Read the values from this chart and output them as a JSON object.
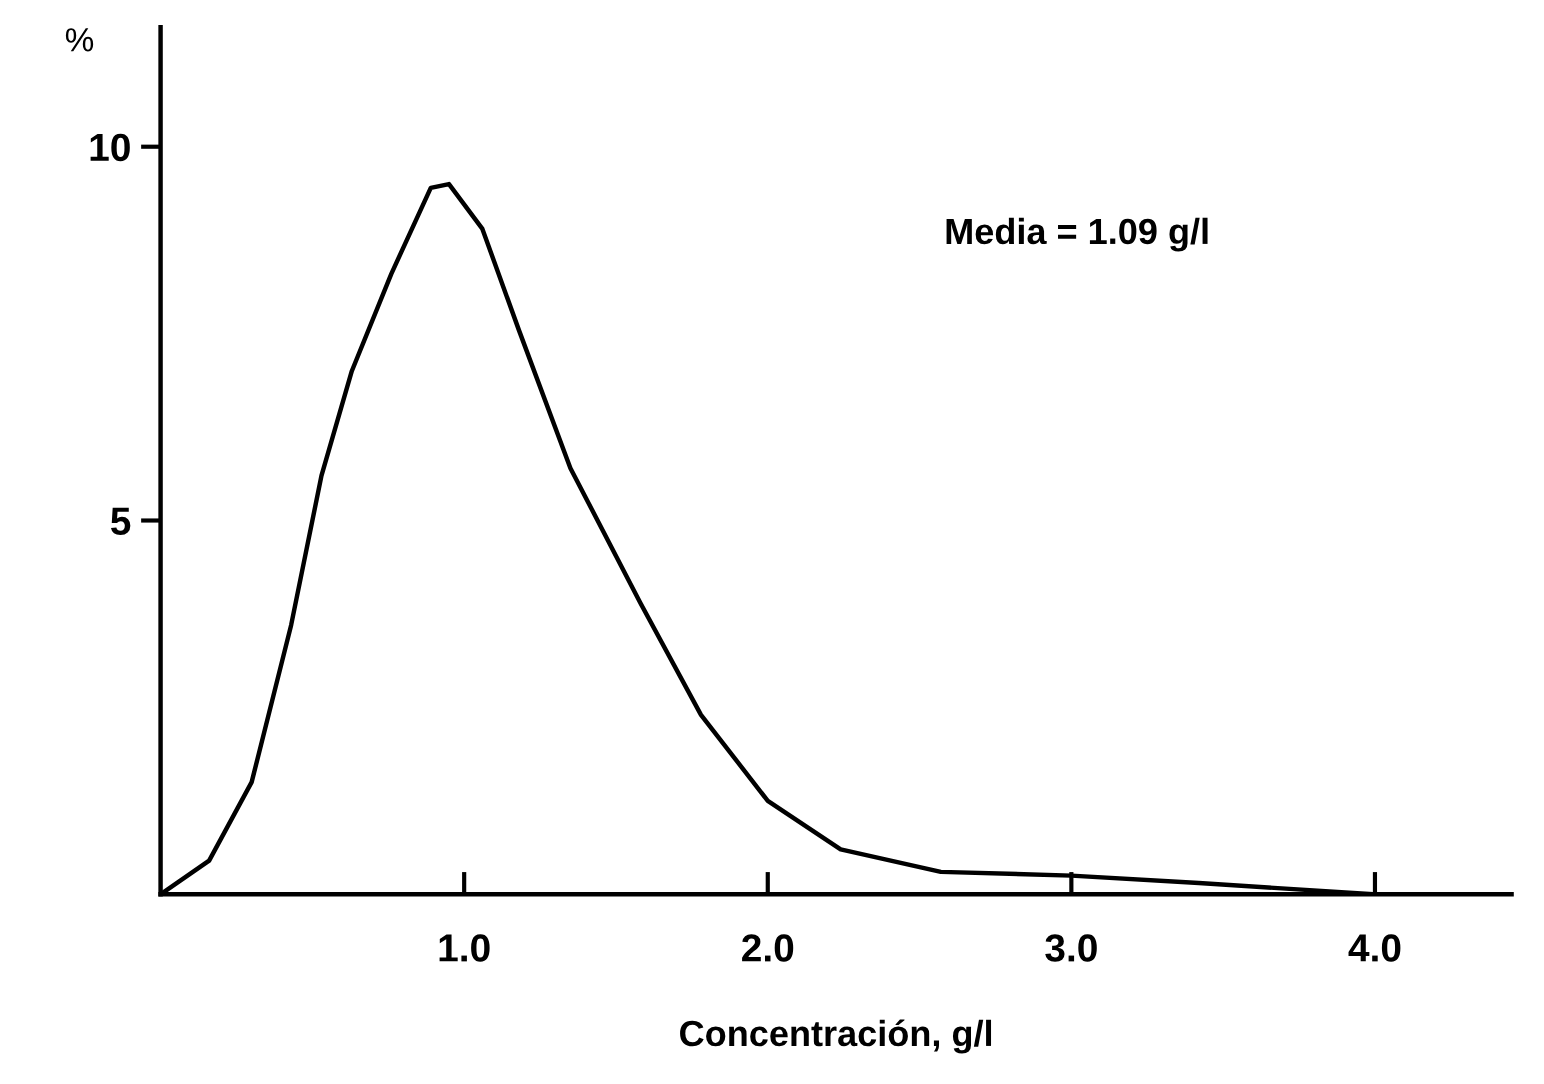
{
  "chart_data": {
    "type": "line",
    "xlabel": "Concentración, g/l",
    "ylabel": "%",
    "annotations": [
      "Media = 1.09 g/l"
    ],
    "x": [
      0,
      0.16,
      0.3,
      0.43,
      0.53,
      0.63,
      0.76,
      0.89,
      0.95,
      1.06,
      1.18,
      1.35,
      1.58,
      1.78,
      2.0,
      2.24,
      2.57,
      3.0,
      3.42,
      4.0
    ],
    "values": [
      0,
      0.45,
      1.5,
      3.6,
      5.6,
      7.0,
      8.3,
      9.45,
      9.5,
      8.9,
      7.55,
      5.7,
      3.9,
      2.4,
      1.25,
      0.6,
      0.3,
      0.25,
      0.15,
      0
    ],
    "color": "#000000",
    "xlim": [
      0,
      4.45
    ],
    "ylim": [
      0,
      11.6
    ],
    "xticks": [
      {
        "value": 1,
        "label": "1.0"
      },
      {
        "value": 2,
        "label": "2.0"
      },
      {
        "value": 3,
        "label": "3.0"
      },
      {
        "value": 4,
        "label": "4.0"
      }
    ],
    "yticks": [
      5,
      10
    ],
    "grid": false,
    "marker": "none",
    "line_style": "solid"
  }
}
